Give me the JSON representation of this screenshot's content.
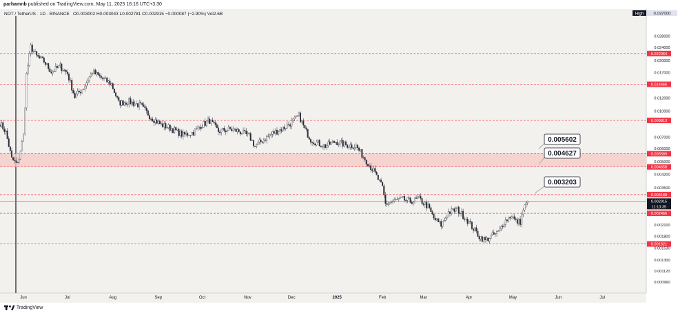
{
  "header": {
    "author": "parhamnb",
    "published_text": "published on TradingView.com, May 11, 2025 16:16 UTC+3:30"
  },
  "footer": {
    "brand": "TradingView"
  },
  "legend": {
    "symbol": "NOT / TetherUS · 1D · BINANCE",
    "ohlc": "O0.003002 H0.003043 L0.002781 C0.002915 −0.000087 (−2.90%) Vol2.6B"
  },
  "colors": {
    "background": "#f3f1ee",
    "candle_up": "#26a69a",
    "candle_down": "#ef5350",
    "level_line": "#f23645",
    "zone_fill": "#f6c9c6",
    "label_bg": "#f23645",
    "price_tag_bg": "#131722"
  },
  "chart_data": {
    "type": "candlestick",
    "scale": "log",
    "ylim": [
      0.00085,
      0.037
    ],
    "price_axis_header": "High",
    "top_value": "0.037000",
    "y_ticks": [
      "0.028000",
      "0.024000",
      "0.020000",
      "0.017000",
      "0.012000",
      "0.010000",
      "0.007000",
      "0.006000",
      "0.005000",
      "0.004200",
      "0.003500",
      "0.002100",
      "0.001800",
      "0.001530",
      "0.001300",
      "0.001120",
      "0.000960"
    ],
    "x_ticks": [
      "Jun",
      "Jul",
      "Aug",
      "Sep",
      "Oct",
      "Nov",
      "Dec",
      "2025",
      "Feb",
      "Mar",
      "Apr",
      "May",
      "Jun",
      "Jul"
    ],
    "x_tick_dates": [
      "2024-06-01",
      "2024-07-01",
      "2024-08-01",
      "2024-09-01",
      "2024-10-01",
      "2024-11-01",
      "2024-12-01",
      "2025-01-01",
      "2025-02-01",
      "2025-03-01",
      "2025-04-01",
      "2025-05-01",
      "2025-06-01",
      "2025-07-01"
    ],
    "x_range": [
      "2024-05-16",
      "2025-07-31"
    ],
    "resistance_levels": [
      "0.022064",
      "0.014466",
      "0.008813",
      "0.005589",
      "0.004658",
      "0.003188",
      "0.002466",
      "0.001621"
    ],
    "zone": [
      "0.004658",
      "0.005589"
    ],
    "annotations": [
      "0.005602",
      "0.004627",
      "0.003203"
    ],
    "current_price": "0.002915",
    "countdown": "11:13:35",
    "anchors": [
      [
        "2024-05-16",
        0.0085
      ],
      [
        "2024-05-20",
        0.0075
      ],
      [
        "2024-05-24",
        0.0052
      ],
      [
        "2024-05-28",
        0.0048
      ],
      [
        "2024-06-01",
        0.0072
      ],
      [
        "2024-06-03",
        0.0165
      ],
      [
        "2024-06-06",
        0.0242
      ],
      [
        "2024-06-10",
        0.0212
      ],
      [
        "2024-06-15",
        0.0198
      ],
      [
        "2024-06-20",
        0.0172
      ],
      [
        "2024-06-26",
        0.0185
      ],
      [
        "2024-07-01",
        0.0168
      ],
      [
        "2024-07-06",
        0.0122
      ],
      [
        "2024-07-12",
        0.0138
      ],
      [
        "2024-07-18",
        0.0172
      ],
      [
        "2024-07-24",
        0.0158
      ],
      [
        "2024-07-31",
        0.0145
      ],
      [
        "2024-08-05",
        0.0112
      ],
      [
        "2024-08-12",
        0.0114
      ],
      [
        "2024-08-20",
        0.0108
      ],
      [
        "2024-08-27",
        0.0092
      ],
      [
        "2024-09-03",
        0.0083
      ],
      [
        "2024-09-10",
        0.0079
      ],
      [
        "2024-09-18",
        0.0072
      ],
      [
        "2024-09-25",
        0.0075
      ],
      [
        "2024-09-30",
        0.0082
      ],
      [
        "2024-10-06",
        0.0088
      ],
      [
        "2024-10-12",
        0.0076
      ],
      [
        "2024-10-20",
        0.0078
      ],
      [
        "2024-10-26",
        0.0076
      ],
      [
        "2024-11-02",
        0.0071
      ],
      [
        "2024-11-06",
        0.0062
      ],
      [
        "2024-11-12",
        0.0068
      ],
      [
        "2024-11-18",
        0.0074
      ],
      [
        "2024-11-25",
        0.0079
      ],
      [
        "2024-12-01",
        0.0086
      ],
      [
        "2024-12-06",
        0.0094
      ],
      [
        "2024-12-10",
        0.0078
      ],
      [
        "2024-12-14",
        0.0068
      ],
      [
        "2024-12-18",
        0.0065
      ],
      [
        "2024-12-24",
        0.0062
      ],
      [
        "2024-12-31",
        0.0066
      ],
      [
        "2025-01-07",
        0.0063
      ],
      [
        "2025-01-14",
        0.0062
      ],
      [
        "2025-01-20",
        0.0052
      ],
      [
        "2025-01-26",
        0.0044
      ],
      [
        "2025-02-01",
        0.0035
      ],
      [
        "2025-02-03",
        0.0028
      ],
      [
        "2025-02-08",
        0.0029
      ],
      [
        "2025-02-14",
        0.003
      ],
      [
        "2025-02-20",
        0.0029
      ],
      [
        "2025-02-26",
        0.003
      ],
      [
        "2025-03-04",
        0.0027
      ],
      [
        "2025-03-08",
        0.0023
      ],
      [
        "2025-03-13",
        0.0021
      ],
      [
        "2025-03-18",
        0.0025
      ],
      [
        "2025-03-24",
        0.0026
      ],
      [
        "2025-03-30",
        0.0023
      ],
      [
        "2025-04-04",
        0.002
      ],
      [
        "2025-04-08",
        0.0018
      ],
      [
        "2025-04-12",
        0.0017
      ],
      [
        "2025-04-16",
        0.0018
      ],
      [
        "2025-04-21",
        0.0019
      ],
      [
        "2025-04-25",
        0.0022
      ],
      [
        "2025-04-30",
        0.0024
      ],
      [
        "2025-05-03",
        0.0022
      ],
      [
        "2025-05-06",
        0.0022
      ],
      [
        "2025-05-08",
        0.0026
      ],
      [
        "2025-05-11",
        0.002915
      ]
    ]
  }
}
